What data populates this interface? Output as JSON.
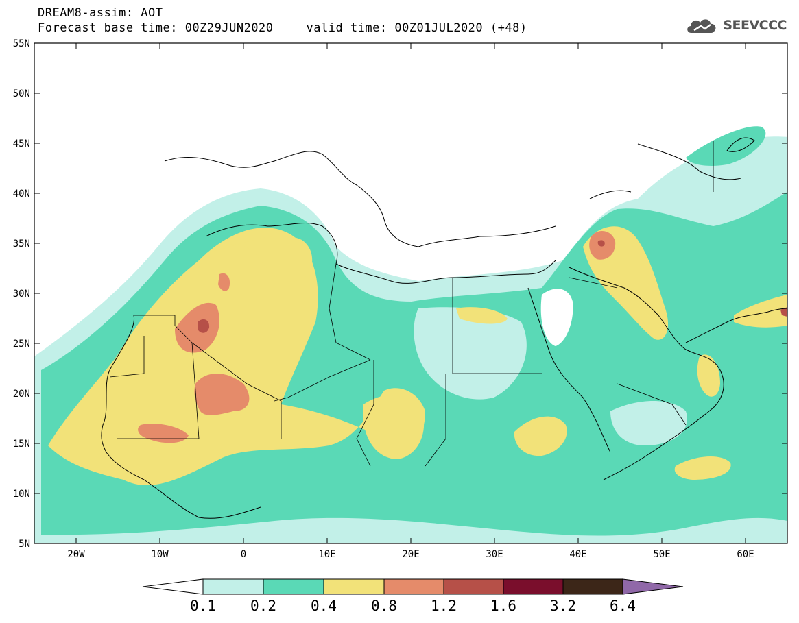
{
  "header": {
    "title": "DREAM8-assim: AOT",
    "base_time": "Forecast base time: 00Z29JUN2020",
    "valid_time": "valid time: 00Z01JUL2020 (+48)"
  },
  "logo": {
    "text": "SEEVCCC",
    "icon": "cloud-icon"
  },
  "map": {
    "lon_range": [
      -25,
      65
    ],
    "lat_range": [
      5,
      55
    ],
    "lat_ticks": [
      "55N",
      "50N",
      "45N",
      "40N",
      "35N",
      "30N",
      "25N",
      "20N",
      "15N",
      "10N",
      "5N"
    ],
    "lon_ticks": [
      "20W",
      "10W",
      "0",
      "10E",
      "20E",
      "30E",
      "40E",
      "50E",
      "60E"
    ]
  },
  "colorbar": {
    "labels": [
      "0.1",
      "0.2",
      "0.4",
      "0.8",
      "1.2",
      "1.6",
      "3.2",
      "6.4"
    ],
    "colors": [
      "#ffffff",
      "#c2f0e8",
      "#5ad9b6",
      "#f2e279",
      "#e58b6a",
      "#b65048",
      "#7a0e2c",
      "#3c2618",
      "#9068a8"
    ]
  }
}
